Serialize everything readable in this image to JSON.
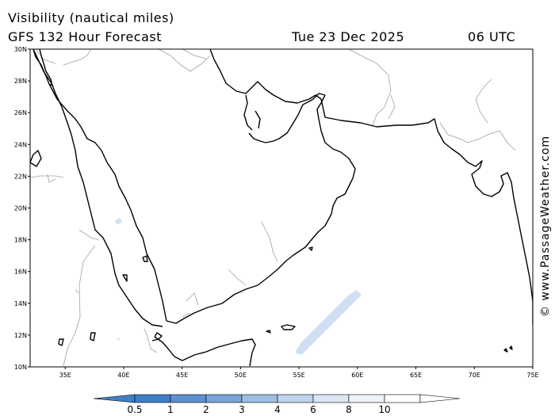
{
  "title": {
    "line1": "Visibility (nautical miles)",
    "line2": "GFS 132 Hour Forecast",
    "date": "Tue 23 Dec 2025",
    "time": "06 UTC"
  },
  "credit": "© www.PassageWeather.com",
  "map": {
    "lat_range": [
      10,
      30
    ],
    "lon_range": [
      32,
      75
    ],
    "lat_ticks": [
      "10N",
      "12N",
      "14N",
      "16N",
      "18N",
      "20N",
      "22N",
      "24N",
      "26N",
      "28N",
      "30N"
    ],
    "lon_ticks": [
      "35E",
      "40E",
      "45E",
      "50E",
      "55E",
      "60E",
      "65E",
      "70E",
      "75E"
    ],
    "colors": {
      "coastline": "#000000",
      "border": "#a0a0a0",
      "low_visibility": "#cfe0f4"
    }
  },
  "legend": {
    "labels": [
      "0.5",
      "1",
      "2",
      "3",
      "4",
      "6",
      "8",
      "10"
    ],
    "colors": [
      "#3f7fc8",
      "#5d90d0",
      "#7ba4d8",
      "#9dbde2",
      "#bfd4ec",
      "#dce7f4",
      "#eef3f9",
      "#ffffff"
    ]
  }
}
